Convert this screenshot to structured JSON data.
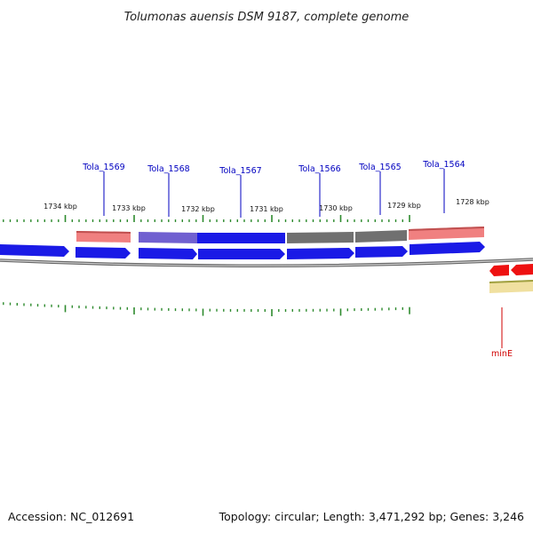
{
  "title": "Tolumonas auensis DSM 9187, complete genome",
  "footer": {
    "accession": "Accession: NC_012691",
    "summary": "Topology: circular; Length: 3,471,292 bp; Genes: 3,246"
  },
  "colors": {
    "cds_forward": "#1a1ae6",
    "cds_reverse": "#ee1111",
    "feature_pink": "#f08080",
    "feature_purple": "#7060d0",
    "feature_gray": "#707070",
    "feature_yellow": "#f0e0a0",
    "tick": "#2e8b2e",
    "label_blue": "#0000c0",
    "label_red": "#d00000",
    "backbone": "#888888"
  },
  "scale_labels": [
    "1734 kbp",
    "1733 kbp",
    "1732 kbp",
    "1731 kbp",
    "1730 kbp",
    "1729 kbp",
    "1728 kbp"
  ],
  "gene_labels": [
    {
      "name": "Tola_1569",
      "strand": "forward"
    },
    {
      "name": "Tola_1568",
      "strand": "forward"
    },
    {
      "name": "Tola_1567",
      "strand": "forward"
    },
    {
      "name": "Tola_1566",
      "strand": "forward"
    },
    {
      "name": "Tola_1565",
      "strand": "forward"
    },
    {
      "name": "Tola_1564",
      "strand": "forward"
    },
    {
      "name": "minE",
      "strand": "reverse"
    }
  ]
}
